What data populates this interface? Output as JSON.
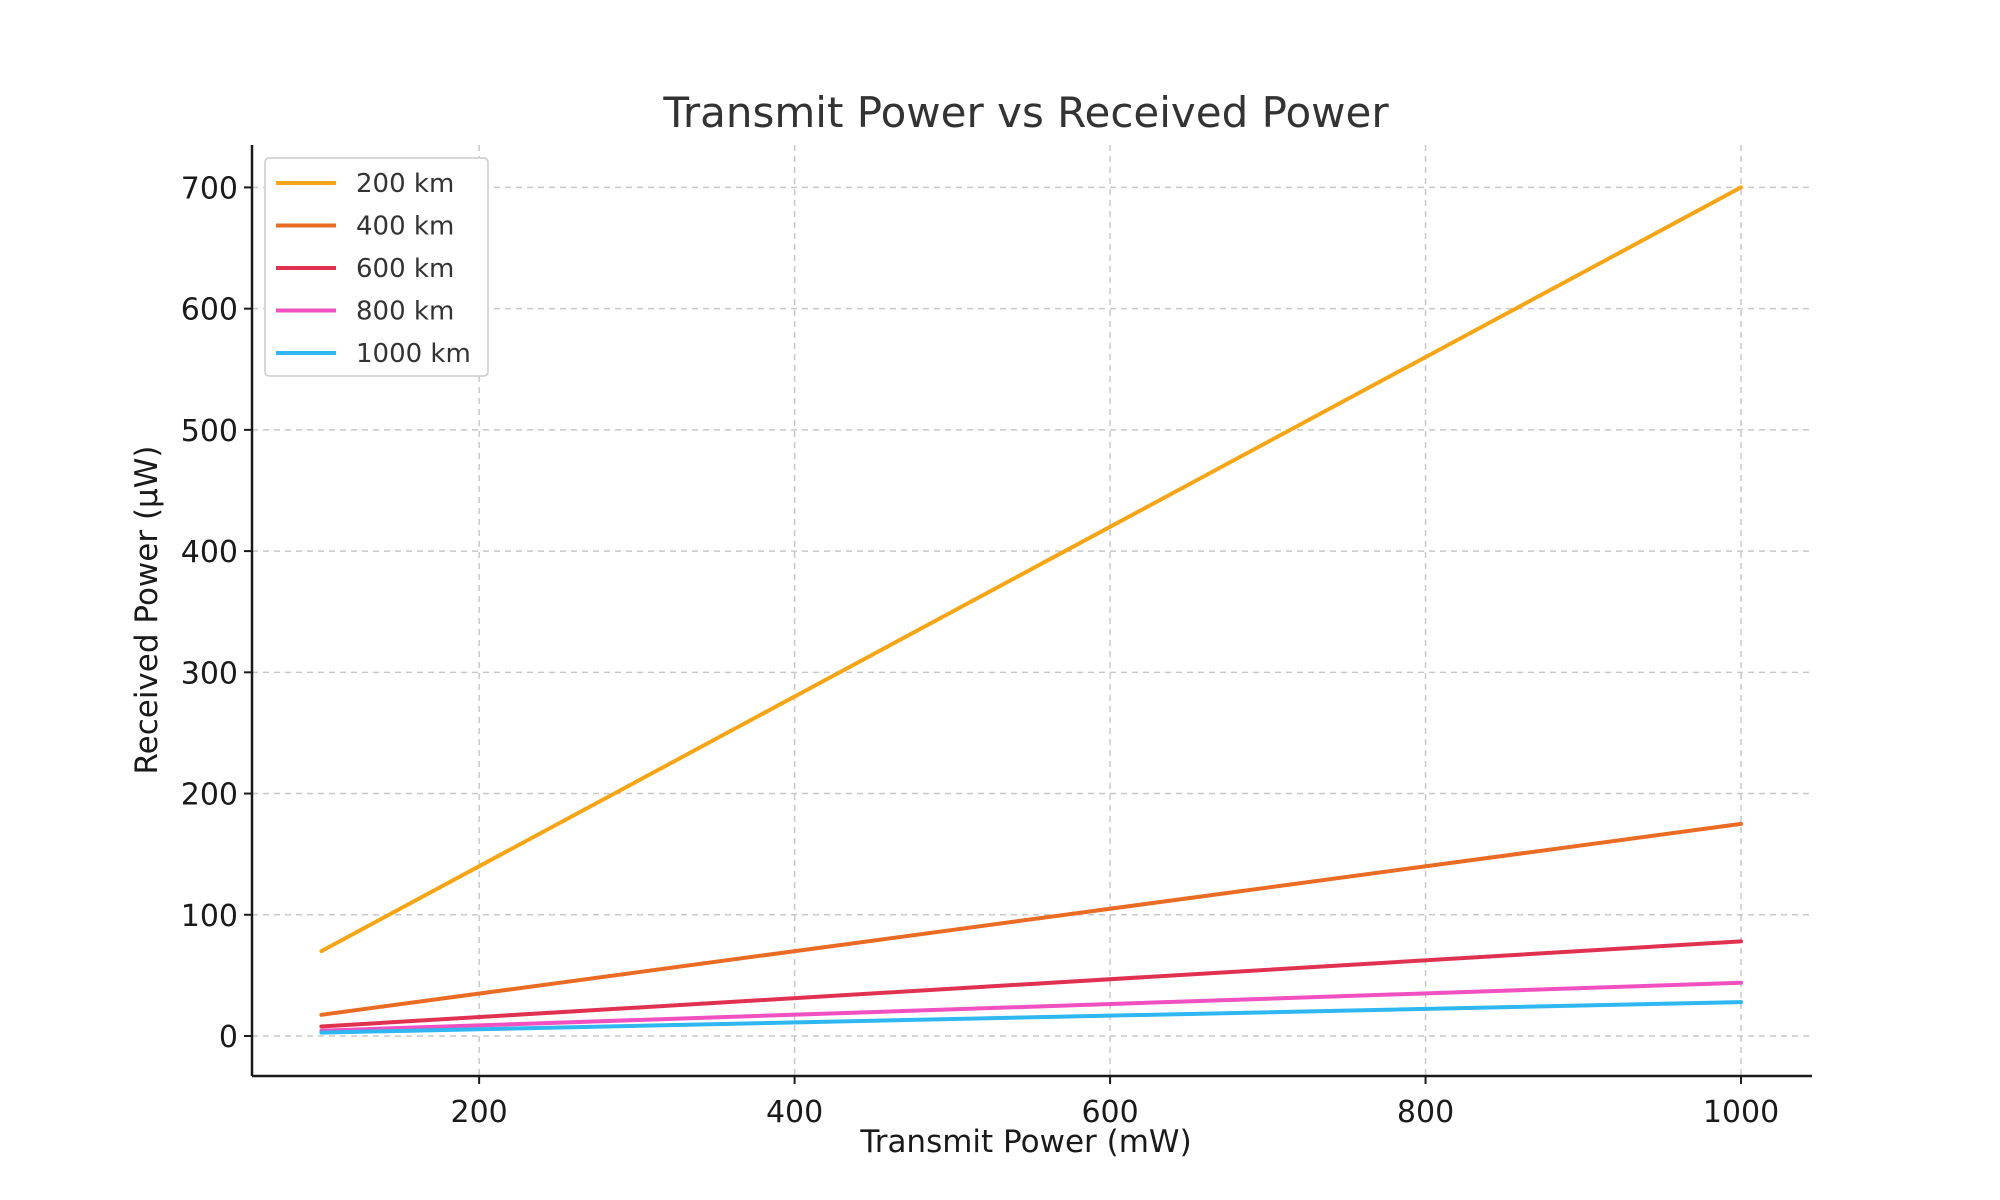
{
  "chart_data": {
    "type": "line",
    "title": "Transmit Power vs Received Power",
    "xlabel": "Transmit Power (mW)",
    "ylabel": "Received Power (µW)",
    "xlim": [
      56,
      1045
    ],
    "ylim": [
      -33,
      735
    ],
    "xticks": [
      200,
      400,
      600,
      800,
      1000
    ],
    "yticks": [
      0,
      100,
      200,
      300,
      400,
      500,
      600,
      700
    ],
    "grid": true,
    "legend_position": "top-left",
    "series": [
      {
        "name": "200 km",
        "color": "#F5A516",
        "x": [
          100,
          1000
        ],
        "y": [
          70,
          700
        ]
      },
      {
        "name": "400 km",
        "color": "#EA6B24",
        "x": [
          100,
          1000
        ],
        "y": [
          17.5,
          175
        ]
      },
      {
        "name": "600 km",
        "color": "#E03250",
        "x": [
          100,
          1000
        ],
        "y": [
          7.8,
          78
        ]
      },
      {
        "name": "800 km",
        "color": "#F050C0",
        "x": [
          100,
          1000
        ],
        "y": [
          4.4,
          44
        ]
      },
      {
        "name": "1000 km",
        "color": "#2EB7F0",
        "x": [
          100,
          1000
        ],
        "y": [
          2.8,
          28
        ]
      }
    ]
  }
}
